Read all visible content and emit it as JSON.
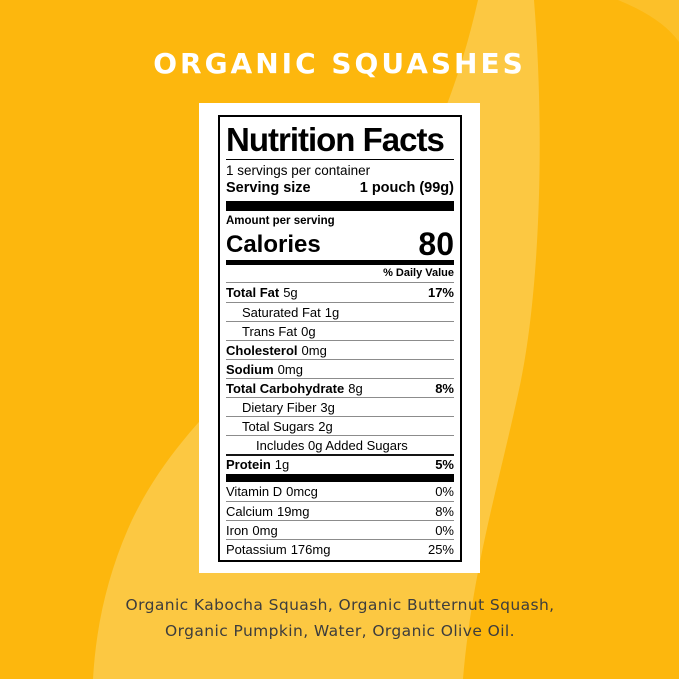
{
  "colors": {
    "background": "#fdb70d",
    "blob": "#fcc842",
    "panel_bg": "#ffffff",
    "title_text": "#ffffff",
    "ingredients_text": "#3d3d3d"
  },
  "page": {
    "title": "ORGANIC SQUASHES",
    "ingredients": "Organic Kabocha Squash, Organic Butternut Squash, Organic Pumpkin, Water, Organic Olive Oil."
  },
  "nutrition_label": {
    "title": "Nutrition Facts",
    "servings_per_container": "1 servings per container",
    "serving_size_label": "Serving size",
    "serving_size_value": "1 pouch (99g)",
    "amount_per_serving": "Amount per serving",
    "calories_label": "Calories",
    "calories_value": "80",
    "daily_value_header": "% Daily Value",
    "rows": [
      {
        "label": "Total Fat",
        "amount": "5g",
        "dv": "17%",
        "style": "main"
      },
      {
        "label": "Saturated Fat",
        "amount": "1g",
        "dv": "",
        "style": "sub"
      },
      {
        "label": "Trans Fat",
        "amount": "0g",
        "dv": "",
        "style": "sub"
      },
      {
        "label": "Cholesterol",
        "amount": "0mg",
        "dv": "",
        "style": "main"
      },
      {
        "label": "Sodium",
        "amount": "0mg",
        "dv": "",
        "style": "main"
      },
      {
        "label": "Total Carbohydrate",
        "amount": "8g",
        "dv": "8%",
        "style": "main"
      },
      {
        "label": "Dietary Fiber",
        "amount": "3g",
        "dv": "",
        "style": "sub"
      },
      {
        "label": "Total Sugars",
        "amount": "2g",
        "dv": "",
        "style": "sub"
      },
      {
        "label": "Includes 0g Added Sugars",
        "amount": "",
        "dv": "",
        "style": "subsub"
      },
      {
        "label": "Protein",
        "amount": "1g",
        "dv": "5%",
        "style": "main protein"
      },
      {
        "label": "Vitamin D",
        "amount": "0mcg",
        "dv": "0%",
        "style": "vitamin nobord",
        "bar_before": true
      },
      {
        "label": "Calcium",
        "amount": "19mg",
        "dv": "8%",
        "style": "vitamin"
      },
      {
        "label": "Iron",
        "amount": "0mg",
        "dv": "0%",
        "style": "vitamin"
      },
      {
        "label": "Potassium",
        "amount": "176mg",
        "dv": "25%",
        "style": "vitamin"
      }
    ]
  }
}
